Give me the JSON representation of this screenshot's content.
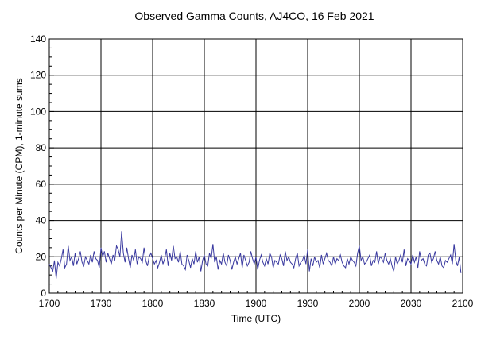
{
  "chart_data": {
    "type": "line",
    "title": "Observed Gamma Counts, AJ4CO, 16 Feb 2021",
    "xlabel": "Time (UTC)",
    "ylabel": "Counts per Minute (CPM), 1-minute sums",
    "xlim": [
      "17:00",
      "21:00"
    ],
    "ylim": [
      0,
      140
    ],
    "x_ticks": [
      "1700",
      "1730",
      "1800",
      "1830",
      "1900",
      "1930",
      "2000",
      "2030",
      "2100"
    ],
    "y_ticks": [
      "0",
      "20",
      "40",
      "60",
      "80",
      "100",
      "120",
      "140"
    ],
    "grid": true,
    "line_color": "#3a3aa0",
    "series": [
      {
        "x_start": "17:00",
        "x_step_minutes": 1,
        "values": [
          16,
          14,
          12,
          18,
          8,
          17,
          15,
          19,
          24,
          14,
          16,
          26,
          18,
          20,
          15,
          22,
          16,
          19,
          23,
          17,
          15,
          20,
          18,
          16,
          21,
          17,
          23,
          19,
          18,
          14,
          25,
          20,
          23,
          17,
          22,
          19,
          16,
          21,
          18,
          26,
          24,
          20,
          34,
          22,
          17,
          25,
          19,
          14,
          21,
          18,
          24,
          16,
          20,
          19,
          17,
          25,
          18,
          15,
          20,
          22,
          19,
          16,
          18,
          14,
          17,
          21,
          16,
          19,
          24,
          15,
          22,
          18,
          26,
          19,
          20,
          17,
          23,
          16,
          15,
          13,
          21,
          18,
          14,
          19,
          16,
          23,
          17,
          20,
          12,
          18,
          21,
          16,
          15,
          22,
          19,
          27,
          17,
          20,
          13,
          18,
          16,
          22,
          17,
          15,
          21,
          18,
          13,
          17,
          20,
          16,
          19,
          22,
          14,
          21,
          18,
          15,
          17,
          23,
          19,
          16,
          20,
          13,
          18,
          21,
          17,
          15,
          19,
          16,
          22,
          20,
          14,
          18,
          17,
          16,
          21,
          19,
          15,
          23,
          18,
          20,
          17,
          16,
          14,
          19,
          22,
          15,
          17,
          18,
          21,
          16,
          24,
          12,
          19,
          15,
          20,
          17,
          18,
          14,
          21,
          16,
          19,
          22,
          18,
          17,
          15,
          20,
          16,
          19,
          18,
          21,
          17,
          15,
          14,
          19,
          16,
          20,
          18,
          17,
          15,
          22,
          26,
          18,
          20,
          16,
          17,
          19,
          21,
          15,
          18,
          17,
          23,
          16,
          20,
          19,
          17,
          22,
          18,
          16,
          19,
          15,
          12,
          20,
          16,
          18,
          21,
          17,
          24,
          15,
          19,
          18,
          16,
          21,
          17,
          20,
          14,
          23,
          18,
          19,
          16,
          15,
          21,
          22,
          17,
          19,
          23,
          18,
          16,
          20,
          15,
          14,
          18,
          17,
          19,
          21,
          16,
          27,
          18,
          15,
          20,
          11
        ]
      }
    ]
  }
}
